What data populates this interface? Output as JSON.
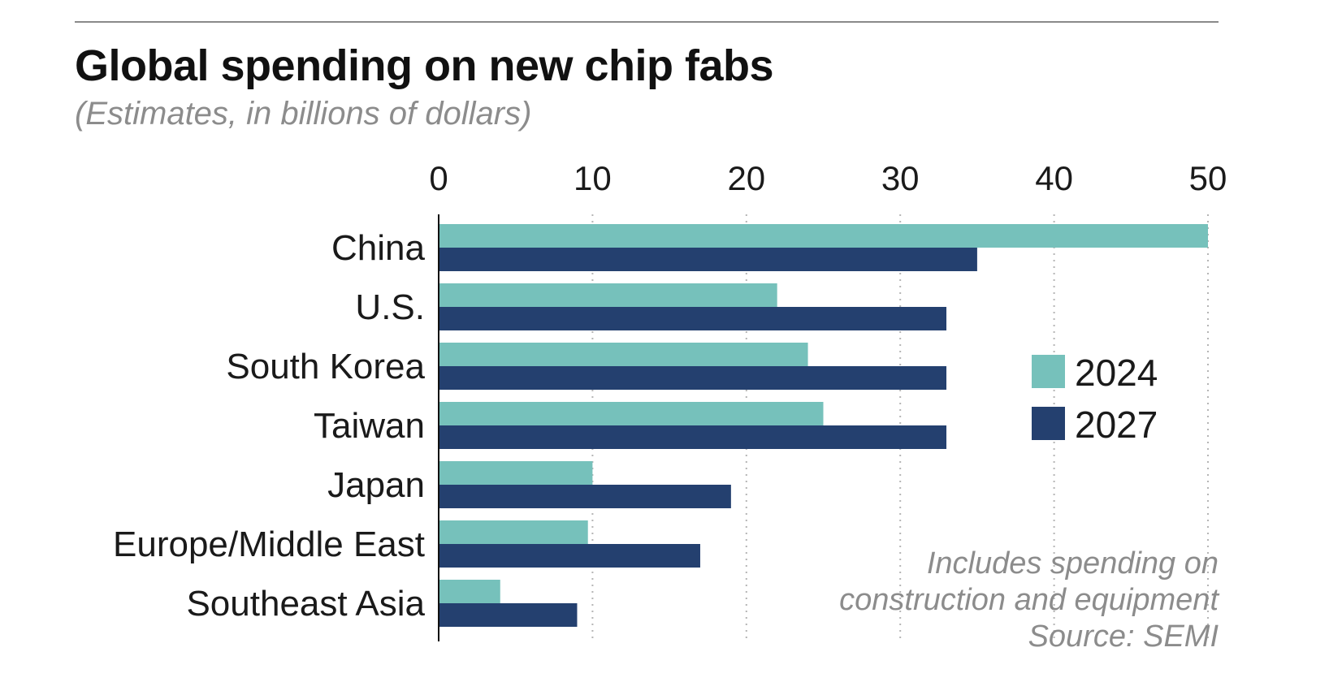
{
  "header": {
    "title": "Global spending on new chip fabs",
    "subtitle": "(Estimates, in billions of dollars)"
  },
  "footer": {
    "note_line1": "Includes spending on",
    "note_line2": "construction and equipment",
    "source": "Source: SEMI"
  },
  "colors": {
    "series_2024": "#76c1bb",
    "series_2027": "#24406f",
    "gridline": "#b5b5b5",
    "axis": "#111111"
  },
  "chart_data": {
    "type": "bar",
    "orientation": "horizontal",
    "title": "Global spending on new chip fabs",
    "subtitle": "(Estimates, in billions of dollars)",
    "xlabel": "",
    "ylabel": "",
    "categories": [
      "China",
      "U.S.",
      "South Korea",
      "Taiwan",
      "Japan",
      "Europe/Middle East",
      "Southeast Asia"
    ],
    "series": [
      {
        "name": "2024",
        "values": [
          50,
          22,
          24,
          25,
          10,
          9.7,
          4
        ]
      },
      {
        "name": "2027",
        "values": [
          35,
          33,
          33,
          33,
          19,
          17,
          9
        ]
      }
    ],
    "xlim": [
      0,
      50
    ],
    "xticks": [
      "0",
      "10",
      "20",
      "30",
      "40",
      "50"
    ],
    "grid": "vertical dotted",
    "legend_position": "right"
  }
}
